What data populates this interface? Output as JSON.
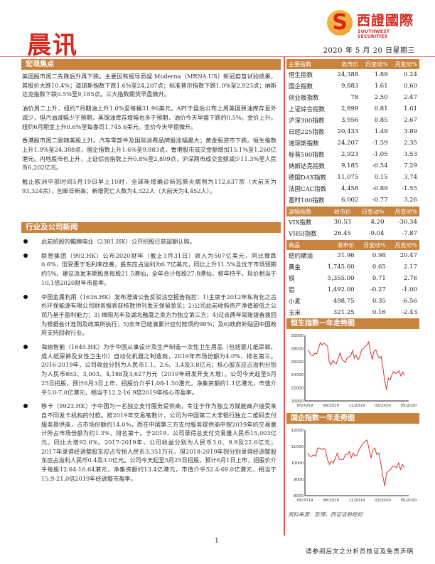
{
  "header": {
    "title": "晨讯",
    "logo_cn": "西證國際",
    "logo_en": "SOUTHWEST SECURITIES",
    "date": "2020 年 5 月 20 日星期三"
  },
  "macro": {
    "heading": "宏观焦点",
    "paragraphs": [
      "美国股市周二先跌后升再下跌。主要因有报导质疑 Moderna（MRNA.US）新冠疫苗试验结果，其股价大跌10.4%；道琼斯指数下跌1.6%至24,207点；标准普尔指数下跌1.0%至2,923点；纳斯达克指数下跌0.5%至9,185点。三大指数期货早盘微升。",
      "油价周二上升，纽约7月期油上升1.0%至每桶31.96美元。API于盘后公布上周美国原油库存意外减少，但汽油减幅少于预期，蒸馏油库存增幅也多于预期，油价今天早盘下跌约0.5%。金价上升，纽约6月期金上升0.6%至每盎司1,745.6美元。金价今天早盘微升。",
      "香港股市周二跟随美股上升。汽车零部件及国际消费品牌股涨幅最大；黄金股逆市下跌。恒生指数上升1.9%至24,388点，国企指数上升1.6%至9,883点，香港股市成交金额增加15.1%至1,260亿港元。内地股市也上升，上证综合指数上升0.8%至2,899点，沪深两市成交金额减少11.3%至人民币6,202亿元。",
      "截止欧洲中部时间5月19日早上10时，全球新增确诊新冠肺炎病例为112,637宗（大前天为93,324宗），创单日新高；新增死亡人数为4,322人（大前天为4,452人）。"
    ]
  },
  "news": {
    "heading": "行业及公司新闻",
    "items": [
      "此前招股的鲲鹏电业（2381.HK）公开招股已获超额认购。",
      "联想集团（992.HK）公布2020财年（截止3月31日）收入为507亿美元，同比微跌0.6%，但受惠于毛利率改善，股东应占溢利为6.7亿美元，同比上升11.5%且优于市场预期约5%。建议派发末期股息每股21.5港仙，全年合计每股27.8港仙，按年持平。现价相当于10.1倍2020财年市盈率。",
      "中国金属利用（1636.HK）发布澄清公告反驳沽空报告指控：1)主席于2012年私有化之古杉环保能源有限公司财务报表获核数师刊发无保留意见；2)公司此前收购资产净值被低之公司乃基于盈利能力；3) 绵阳兆丰及湖北融晟之卖方为独立第三方；4)过去两年呆账拨备拨回为根据会计准则及政策所执行；5)去年已结清累计应付款项约98%；及6)政府补贴因中国政府支持回收行业。",
      "海纳智能（1645.HK）为于中国从事设计及生产制造一次性卫生用品（包括婴儿纸尿裤、成人纸尿裤及女性卫生巾）自动化机器之制造商，2019年市场份额为4.0%，排名第三。2016-2019年，公司收益分别为人民币1.1、2.6、3.4及3.8亿元；核心股东应占溢利分别为人民币863、3,003、4,188及3,627万元（2019年研发开支大增）。公司今天起至5月25日招股，预计6月3日上市，招股价介乎1.08-1.50港元，净集资额约1.1亿港元，市值介乎5.0-7.0亿港元，相当于12.2-16.9倍2019年核心市盈率。",
      "移卡（9923.HK）于中国为一名独立支付服务提供商，专注于作为独立方赋能商户接受来自不同发卡机构的付款。按2019年交易笔数计，公司为中国第二大非银行独立二维码支付服务提供商，占市场份额约14.0%，而在中国第三方支付服务提供商中按2019年的交易量计所占市场份额为约1.3%，排名第十。于2019，公司录得总支付交易量人民币15,003亿元，同比大增92.6%。2017-2019年，公司收益分别为人民币3.0、9.9及22.6亿元；2017年录得经调整股东应占亏损人民币3,351万元，但2018-2019年则分别录得经调整股东应占溢利人民币0.4及3.0亿元。公司今天起至5月25日招股，预计6月1日上市，招股价介乎每股12.64-16.64港元，净集资额约13.4亿港元，市值介乎52.4-69.0亿港元，相当于15.9-21.0倍2019年经调整市盈率。"
    ]
  },
  "tables": [
    {
      "headers": [
        "主要指数",
        "收市价",
        "日变动%",
        "月变动%"
      ],
      "rows": [
        [
          "恒生指数",
          "24,388",
          "1.89",
          "0.24"
        ],
        [
          "国企指数",
          "9,883",
          "1.61",
          "0.60"
        ],
        [
          "创业板指数",
          "78",
          "2.50",
          "2.47"
        ],
        [
          "上证综合指数",
          "2,899",
          "0.81",
          "1.61"
        ],
        [
          "沪深300指数",
          "3,956",
          "0.85",
          "2.67"
        ],
        [
          "日经225指数",
          "20,433",
          "1.49",
          "3.89"
        ],
        [
          "道琼斯指数",
          "24,207",
          "-1.59",
          "2.35"
        ],
        [
          "标普500指数",
          "2,923",
          "-1.05",
          "3.53"
        ],
        [
          "纳斯达克指数",
          "9,185",
          "-0.54",
          "7.29"
        ],
        [
          "德国DAX指数",
          "11,075",
          "0.15",
          "3.74"
        ],
        [
          "法国CAC指数",
          "4,458",
          "-0.89",
          "-1.55"
        ],
        [
          "富时100指数",
          "6,002",
          "-0.77",
          "3.26"
        ]
      ]
    },
    {
      "headers": [
        "波幅指数",
        "收市价",
        "日变动%",
        "月变动%"
      ],
      "rows": [
        [
          "VIX指数",
          "30.53",
          "4.20",
          "-30.34"
        ],
        [
          "VHSI指数",
          "26.45",
          "-9.04",
          "-7.87"
        ]
      ]
    },
    {
      "headers": [
        "商品",
        "收市价",
        "日变动%",
        "月变动%"
      ],
      "rows": [
        [
          "纽约期油",
          "31.96",
          "0.98",
          "20.47"
        ],
        [
          "黄金",
          "1,745.60",
          "0.65",
          "2.17"
        ],
        [
          "铜",
          "5,355.00",
          "0.71",
          "2.76"
        ],
        [
          "铝",
          "1,492.00",
          "-0.27",
          "-1.00"
        ],
        [
          "小麦",
          "498.75",
          "0.35",
          "-6.56"
        ],
        [
          "玉米",
          "321.25",
          "0.16",
          "-2.43"
        ]
      ]
    }
  ],
  "chart_data": [
    {
      "type": "line",
      "title": "恒生指数一年走势图",
      "x_ticks": [
        "05/2019",
        "08/2019",
        "11/2019",
        "02/2020",
        "05/2020"
      ],
      "y_ticks": [
        "20000",
        "22000",
        "24000",
        "26000",
        "28000",
        "30000"
      ],
      "ylim": [
        20000,
        30000
      ],
      "color": "#e0302a",
      "values": [
        27800,
        27400,
        27000,
        26900,
        27300,
        27200,
        28000,
        28900,
        28500,
        28800,
        28600,
        28400,
        26000,
        25500,
        26200,
        25800,
        25700,
        26500,
        27300,
        26400,
        26100,
        25900,
        26600,
        26700,
        26900,
        27700,
        26500,
        27000,
        26300,
        26700,
        27800,
        28000,
        28300,
        28500,
        29000,
        27500,
        26300,
        27600,
        27800,
        27000,
        26500,
        26800,
        25000,
        23000,
        21700,
        23500,
        23200,
        24000,
        24500,
        24200,
        24300,
        24600,
        23800,
        24400,
        23900
      ]
    },
    {
      "type": "line",
      "title": "国企指数一年走势图",
      "x_ticks": [
        "05/2019",
        "08/2019",
        "11/2019",
        "02/2020",
        "05/2020"
      ],
      "y_ticks": [
        "8000",
        "9000",
        "10000",
        "11000",
        "12000"
      ],
      "ylim": [
        8000,
        12000
      ],
      "color": "#e0302a",
      "values": [
        10600,
        10400,
        10400,
        10500,
        10400,
        10900,
        10900,
        10800,
        10900,
        10800,
        10200,
        9900,
        10100,
        10000,
        10300,
        10600,
        10200,
        10200,
        10200,
        10500,
        10500,
        10700,
        10300,
        10600,
        10400,
        10500,
        10800,
        11000,
        11200,
        11300,
        11400,
        10900,
        10300,
        10800,
        10900,
        10500,
        10600,
        10000,
        9200,
        8600,
        9400,
        9500,
        9600,
        9800,
        9800,
        9700,
        10000,
        9600,
        9900,
        9700
      ]
    }
  ],
  "source": "资料来源：彭博，西证证券经纪",
  "page_number": "1",
  "footer": "请参阅后文之分析员核证及免责声明"
}
